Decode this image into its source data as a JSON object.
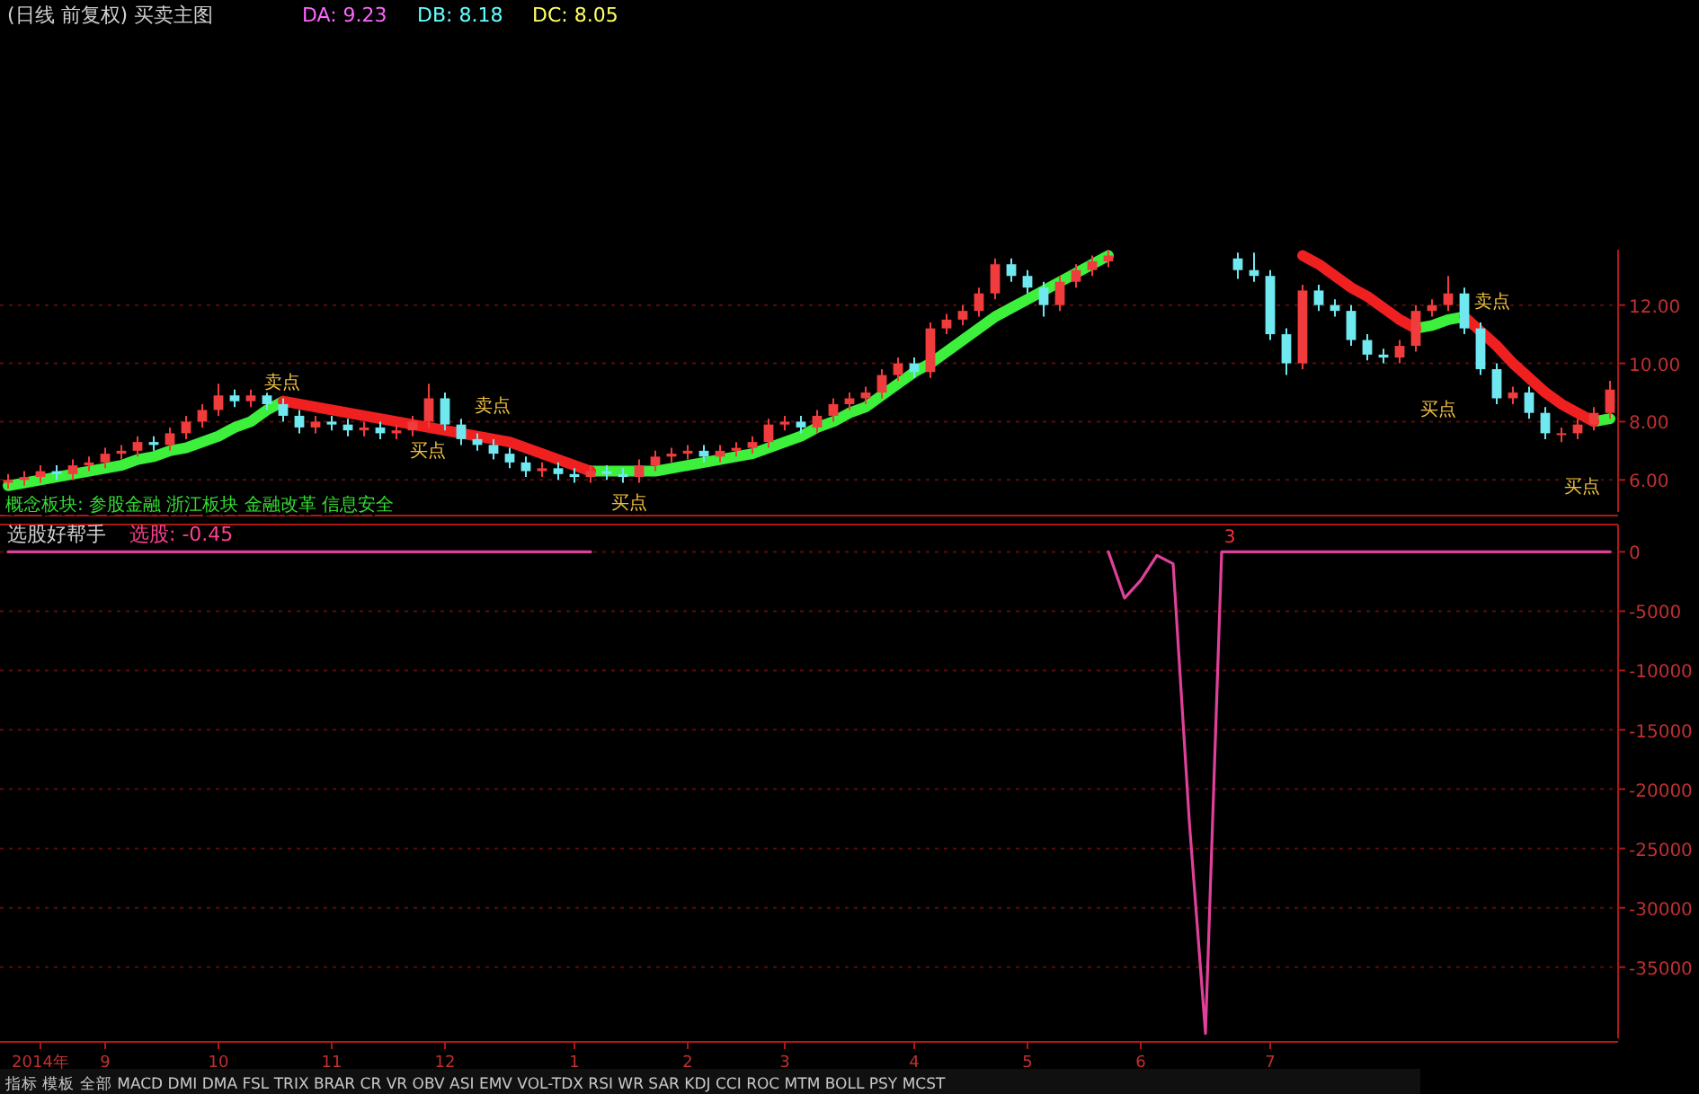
{
  "chart_data": [
    {
      "type": "candlestick",
      "title": "(日线 前复权) 买卖主图",
      "categories": [
        null,
        null,
        null,
        null,
        null,
        null,
        null,
        null,
        null,
        null,
        null,
        null,
        null,
        null,
        null,
        null,
        null,
        null,
        null,
        null,
        null,
        null,
        null,
        null,
        null,
        null,
        null,
        null,
        null,
        null,
        null,
        null,
        null,
        null,
        null,
        null,
        null,
        null,
        null,
        null,
        null,
        null,
        null,
        null,
        null,
        null,
        null,
        null,
        null,
        null,
        null,
        null,
        null,
        null,
        null,
        null,
        null,
        null,
        null,
        null,
        null,
        null,
        null,
        null,
        null,
        null,
        null,
        null,
        null,
        null,
        null,
        null,
        null,
        null,
        null,
        null,
        null,
        null,
        null,
        null,
        null,
        null,
        null,
        null,
        null,
        null,
        null,
        null,
        null,
        null,
        null,
        null,
        null,
        null,
        null,
        null,
        null,
        null,
        null,
        null
      ],
      "ylim": [
        4.9,
        13.9
      ],
      "yticks": [
        {
          "value": 6,
          "label": "6.00"
        },
        {
          "value": 8,
          "label": "8.00"
        },
        {
          "value": 10,
          "label": "10.00"
        },
        {
          "value": 12,
          "label": "12.00"
        }
      ],
      "grid": "y",
      "tick_labels": "y",
      "series": [
        {
          "type": "line",
          "color": "#3cf03c",
          "values": [
            5.8,
            5.9,
            6.0,
            6.1,
            6.2,
            6.3,
            6.4,
            6.5,
            6.7,
            6.8,
            7.0,
            7.1,
            7.3,
            7.5,
            7.8,
            8.0,
            8.4,
            8.7,
            null,
            null,
            null,
            null,
            null,
            null,
            null,
            null,
            null,
            null,
            null,
            null,
            null,
            null,
            null,
            null,
            null,
            null,
            6.3,
            6.3,
            6.3,
            6.3,
            6.3,
            6.4,
            6.5,
            6.6,
            6.7,
            6.8,
            6.9,
            7.1,
            7.3,
            7.5,
            7.8,
            8.0,
            8.3,
            8.5,
            8.9,
            9.3,
            9.7,
            10.0,
            10.4,
            10.8,
            11.2,
            11.6,
            11.9,
            12.2,
            12.5,
            12.8,
            13.1,
            13.4,
            13.7,
            null,
            null,
            null,
            null,
            null,
            null,
            null,
            null,
            null,
            null,
            null,
            null,
            null,
            null,
            null,
            null,
            null,
            null,
            11.2,
            11.3,
            11.5,
            11.6,
            null,
            null,
            null,
            null,
            null,
            null,
            null,
            8.0,
            8.1
          ]
        },
        {
          "type": "line",
          "color": "#f02020",
          "values": [
            null,
            null,
            null,
            null,
            null,
            null,
            null,
            null,
            null,
            null,
            null,
            null,
            null,
            null,
            null,
            null,
            null,
            8.7,
            8.6,
            8.5,
            8.4,
            8.3,
            8.2,
            8.1,
            8.0,
            7.9,
            7.8,
            7.7,
            7.6,
            7.5,
            7.4,
            7.3,
            7.1,
            6.9,
            6.7,
            6.5,
            6.3,
            null,
            null,
            null,
            null,
            null,
            null,
            null,
            null,
            null,
            null,
            null,
            null,
            null,
            null,
            null,
            null,
            null,
            null,
            null,
            null,
            null,
            null,
            null,
            null,
            null,
            null,
            null,
            null,
            null,
            null,
            null,
            null,
            null,
            null,
            null,
            null,
            null,
            null,
            null,
            null,
            null,
            null,
            null,
            13.7,
            13.4,
            13.0,
            12.6,
            12.3,
            11.9,
            11.5,
            11.2,
            null,
            null,
            11.6,
            11.1,
            10.6,
            10.0,
            9.5,
            9.0,
            8.6,
            8.3,
            8.0,
            null
          ]
        },
        {
          "ohlc": [
            [
              5.9,
              6.2,
              5.7,
              6.0
            ],
            [
              6.0,
              6.3,
              5.8,
              6.1
            ],
            [
              6.1,
              6.5,
              5.9,
              6.3
            ],
            [
              6.3,
              6.5,
              6.0,
              6.2
            ],
            [
              6.2,
              6.7,
              6.0,
              6.5
            ],
            [
              6.5,
              6.8,
              6.3,
              6.6
            ],
            [
              6.6,
              7.1,
              6.4,
              6.9
            ],
            [
              6.9,
              7.2,
              6.7,
              7.0
            ],
            [
              7.0,
              7.5,
              6.8,
              7.3
            ],
            [
              7.3,
              7.5,
              7.0,
              7.2
            ],
            [
              7.2,
              7.8,
              7.0,
              7.6
            ],
            [
              7.6,
              8.2,
              7.4,
              8.0
            ],
            [
              8.0,
              8.6,
              7.8,
              8.4
            ],
            [
              8.4,
              9.3,
              8.2,
              8.9
            ],
            [
              8.9,
              9.1,
              8.5,
              8.7
            ],
            [
              8.7,
              9.1,
              8.5,
              8.9
            ],
            [
              8.9,
              9.1,
              8.4,
              8.6
            ],
            [
              8.6,
              8.8,
              8.0,
              8.2
            ],
            [
              8.2,
              8.4,
              7.6,
              7.8
            ],
            [
              7.8,
              8.2,
              7.6,
              8.0
            ],
            [
              8.0,
              8.2,
              7.7,
              7.9
            ],
            [
              7.9,
              8.1,
              7.5,
              7.7
            ],
            [
              7.7,
              8.0,
              7.5,
              7.8
            ],
            [
              7.8,
              8.0,
              7.4,
              7.6
            ],
            [
              7.6,
              7.9,
              7.4,
              7.7
            ],
            [
              7.7,
              8.2,
              7.5,
              8.0
            ],
            [
              8.0,
              9.3,
              7.8,
              8.8
            ],
            [
              8.8,
              9.0,
              7.7,
              7.9
            ],
            [
              7.9,
              8.1,
              7.2,
              7.4
            ],
            [
              7.4,
              7.6,
              7.0,
              7.2
            ],
            [
              7.2,
              7.4,
              6.7,
              6.9
            ],
            [
              6.9,
              7.1,
              6.4,
              6.6
            ],
            [
              6.6,
              6.8,
              6.1,
              6.3
            ],
            [
              6.3,
              6.6,
              6.1,
              6.4
            ],
            [
              6.4,
              6.6,
              6.0,
              6.2
            ],
            [
              6.2,
              6.4,
              5.9,
              6.1
            ],
            [
              6.1,
              6.5,
              5.9,
              6.3
            ],
            [
              6.3,
              6.5,
              6.0,
              6.2
            ],
            [
              6.2,
              6.4,
              5.9,
              6.1
            ],
            [
              6.1,
              6.7,
              5.9,
              6.5
            ],
            [
              6.5,
              7.0,
              6.3,
              6.8
            ],
            [
              6.8,
              7.1,
              6.6,
              6.9
            ],
            [
              6.9,
              7.2,
              6.7,
              7.0
            ],
            [
              7.0,
              7.2,
              6.6,
              6.8
            ],
            [
              6.8,
              7.2,
              6.6,
              7.0
            ],
            [
              7.0,
              7.3,
              6.8,
              7.1
            ],
            [
              7.1,
              7.5,
              6.9,
              7.3
            ],
            [
              7.3,
              8.1,
              7.1,
              7.9
            ],
            [
              7.9,
              8.2,
              7.7,
              8.0
            ],
            [
              8.0,
              8.2,
              7.6,
              7.8
            ],
            [
              7.8,
              8.4,
              7.6,
              8.2
            ],
            [
              8.2,
              8.8,
              8.0,
              8.6
            ],
            [
              8.6,
              9.0,
              8.4,
              8.8
            ],
            [
              8.8,
              9.2,
              8.6,
              9.0
            ],
            [
              9.0,
              9.8,
              8.8,
              9.6
            ],
            [
              9.6,
              10.2,
              9.4,
              10.0
            ],
            [
              10.0,
              10.2,
              9.5,
              9.7
            ],
            [
              9.7,
              11.4,
              9.5,
              11.2
            ],
            [
              11.2,
              11.7,
              11.0,
              11.5
            ],
            [
              11.5,
              12.0,
              11.3,
              11.8
            ],
            [
              11.8,
              12.6,
              11.6,
              12.4
            ],
            [
              12.4,
              13.6,
              12.2,
              13.4
            ],
            [
              13.4,
              13.6,
              12.8,
              13.0
            ],
            [
              13.0,
              13.2,
              12.4,
              12.6
            ],
            [
              12.6,
              12.8,
              11.6,
              12.0
            ],
            [
              12.0,
              13.0,
              11.8,
              12.8
            ],
            [
              12.8,
              13.4,
              12.6,
              13.2
            ],
            [
              13.2,
              13.7,
              13.0,
              13.5
            ],
            [
              13.5,
              13.9,
              13.3,
              13.7
            ],
            null,
            null,
            null,
            null,
            null,
            null,
            null,
            [
              13.6,
              13.8,
              12.9,
              13.2
            ],
            [
              13.2,
              13.8,
              12.8,
              13.0
            ],
            [
              13.0,
              13.2,
              10.8,
              11.0
            ],
            [
              11.0,
              11.2,
              9.6,
              10.0
            ],
            [
              10.0,
              12.7,
              9.8,
              12.5
            ],
            [
              12.5,
              12.7,
              11.8,
              12.0
            ],
            [
              12.0,
              12.2,
              11.6,
              11.8
            ],
            [
              11.8,
              12.0,
              10.6,
              10.8
            ],
            [
              10.8,
              11.0,
              10.1,
              10.3
            ],
            [
              10.3,
              10.5,
              10.0,
              10.2
            ],
            [
              10.2,
              10.8,
              10.0,
              10.6
            ],
            [
              10.6,
              12.0,
              10.4,
              11.8
            ],
            [
              11.8,
              12.2,
              11.6,
              12.0
            ],
            [
              12.0,
              13.0,
              11.8,
              12.4
            ],
            [
              12.4,
              12.6,
              11.0,
              11.2
            ],
            [
              11.2,
              11.4,
              9.6,
              9.8
            ],
            [
              9.8,
              10.0,
              8.6,
              8.8
            ],
            [
              8.8,
              9.2,
              8.6,
              9.0
            ],
            [
              9.0,
              9.2,
              8.1,
              8.3
            ],
            [
              8.3,
              8.5,
              7.4,
              7.6
            ],
            [
              7.6,
              7.8,
              7.3,
              7.6
            ],
            [
              7.6,
              8.1,
              7.4,
              7.9
            ],
            [
              7.9,
              8.5,
              7.7,
              8.3
            ],
            [
              8.3,
              9.4,
              8.1,
              9.1
            ]
          ],
          "colors": [
            "#f03c3c",
            "#f03c3c",
            "#f03c3c",
            "#70e8f0",
            "#f03c3c",
            "#f03c3c",
            "#f03c3c",
            "#f03c3c",
            "#f03c3c",
            "#70e8f0",
            "#f03c3c",
            "#f03c3c",
            "#f03c3c",
            "#f03c3c",
            "#70e8f0",
            "#f03c3c",
            "#70e8f0",
            "#70e8f0",
            "#70e8f0",
            "#f03c3c",
            "#70e8f0",
            "#70e8f0",
            "#f03c3c",
            "#70e8f0",
            "#f03c3c",
            "#f03c3c",
            "#f03c3c",
            "#70e8f0",
            "#70e8f0",
            "#70e8f0",
            "#70e8f0",
            "#70e8f0",
            "#70e8f0",
            "#f03c3c",
            "#70e8f0",
            "#70e8f0",
            "#f03c3c",
            "#70e8f0",
            "#70e8f0",
            "#f03c3c",
            "#f03c3c",
            "#f03c3c",
            "#f03c3c",
            "#70e8f0",
            "#f03c3c",
            "#f03c3c",
            "#f03c3c",
            "#f03c3c",
            "#f03c3c",
            "#70e8f0",
            "#f03c3c",
            "#f03c3c",
            "#f03c3c",
            "#f03c3c",
            "#f03c3c",
            "#f03c3c",
            "#70e8f0",
            "#f03c3c",
            "#f03c3c",
            "#f03c3c",
            "#f03c3c",
            "#f03c3c",
            "#70e8f0",
            "#70e8f0",
            "#70e8f0",
            "#f03c3c",
            "#f03c3c",
            "#f03c3c",
            "#f03c3c",
            null,
            null,
            null,
            null,
            null,
            null,
            null,
            "#70e8f0",
            "#70e8f0",
            "#70e8f0",
            "#70e8f0",
            "#f03c3c",
            "#70e8f0",
            "#70e8f0",
            "#70e8f0",
            "#70e8f0",
            "#70e8f0",
            "#f03c3c",
            "#f03c3c",
            "#f03c3c",
            "#f03c3c",
            "#70e8f0",
            "#70e8f0",
            "#70e8f0",
            "#f03c3c",
            "#70e8f0",
            "#70e8f0",
            "#f03c3c",
            "#f03c3c",
            "#f03c3c",
            "#f03c3c"
          ]
        }
      ],
      "annotations": [
        "DA: 9.23",
        "DB: 8.18",
        "DC: 8.05",
        "概念板块: 参股金融 浙江板块 金融改革 信息安全",
        "卖点",
        "买点",
        "卖点",
        "买点",
        "买点",
        "卖点",
        "买点"
      ]
    },
    {
      "type": "line",
      "title": "选股好帮手",
      "categories": [
        null,
        null,
        "2014年",
        null,
        null,
        null,
        "9",
        null,
        null,
        null,
        null,
        null,
        null,
        "10",
        null,
        null,
        null,
        null,
        null,
        null,
        "11",
        null,
        null,
        null,
        null,
        null,
        null,
        "12",
        null,
        null,
        null,
        null,
        null,
        null,
        null,
        "1",
        null,
        null,
        null,
        null,
        null,
        null,
        "2",
        null,
        null,
        null,
        null,
        null,
        "3",
        null,
        null,
        null,
        null,
        null,
        null,
        null,
        "4",
        null,
        null,
        null,
        null,
        null,
        null,
        "5",
        null,
        null,
        null,
        null,
        null,
        null,
        "6",
        null,
        null,
        null,
        null,
        null,
        null,
        null,
        "7",
        null,
        null,
        null,
        null,
        null,
        null,
        null,
        null,
        null,
        null,
        null,
        null,
        null,
        null,
        null,
        null,
        null,
        null,
        null,
        null,
        null
      ],
      "ylim": [
        -41000,
        2300
      ],
      "yticks": [
        0,
        -5000,
        -10000,
        -15000,
        -20000,
        -25000,
        -30000,
        -35000
      ],
      "grid": "y",
      "series": [
        {
          "color": "#e0409a",
          "values": [
            0,
            0,
            0,
            0,
            0,
            0,
            0,
            0,
            0,
            0,
            0,
            0,
            0,
            0,
            0,
            0,
            0,
            0,
            0,
            0,
            0,
            0,
            0,
            0,
            0,
            0,
            0,
            0,
            0,
            0,
            0,
            0,
            0,
            0,
            0,
            0,
            0,
            null,
            null,
            null,
            null,
            null,
            null,
            null,
            null,
            null,
            null,
            null,
            null,
            null,
            null,
            null,
            null,
            null,
            null,
            null,
            null,
            null,
            null,
            null,
            null,
            null,
            null,
            null,
            null,
            null,
            null,
            null,
            0,
            -3900,
            -2400,
            -300,
            -1000,
            -22700,
            -40600,
            0,
            0,
            0,
            0,
            0,
            0,
            0,
            0,
            0,
            0,
            0,
            0,
            0,
            0,
            0,
            0,
            0,
            0,
            0,
            0,
            0,
            0,
            0,
            0,
            0
          ]
        }
      ],
      "annotations": [
        "选股: -0.45",
        "指标 模板 全部 MACD DMI DMA FSL TRIX BRAR CR VR OBV ASI EMV VOL-TDX RSI WR SAR KDJ CCI ROC MTM BOLL PSY MCST",
        "3"
      ]
    }
  ]
}
